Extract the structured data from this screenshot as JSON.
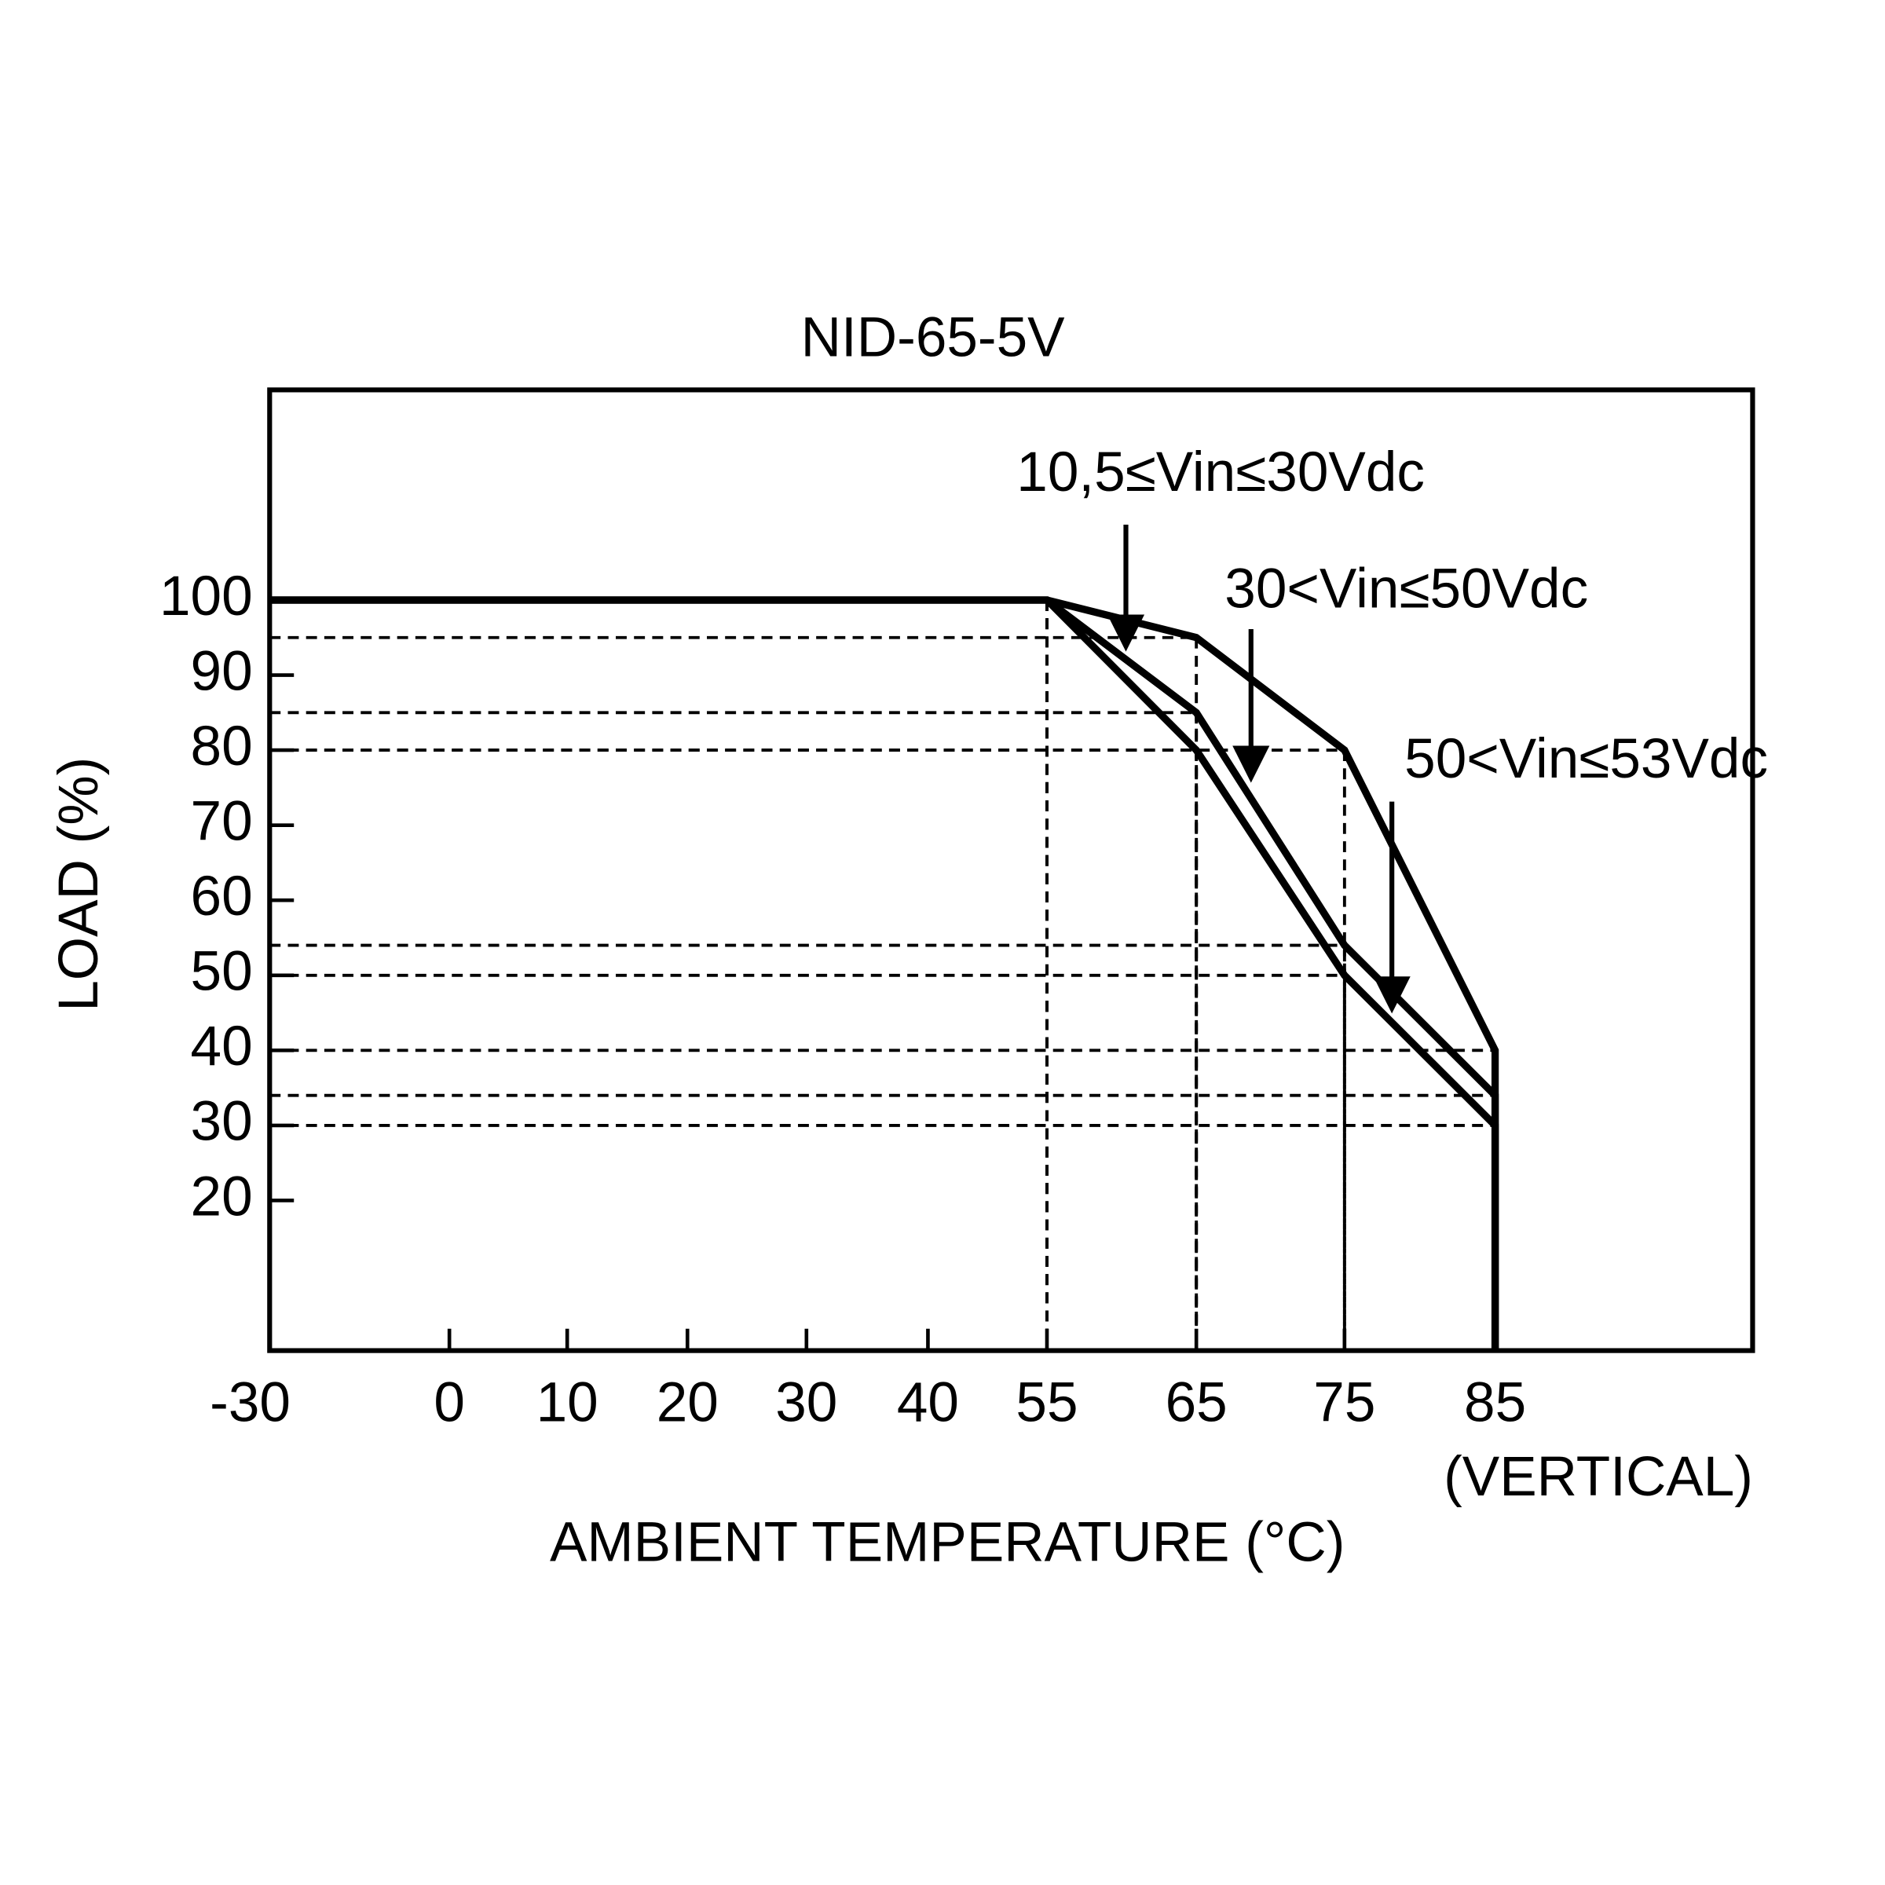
{
  "chart_data": {
    "type": "line",
    "title": "NID-65-5V",
    "x_label": "AMBIENT TEMPERATURE (°C)",
    "y_label": "LOAD (%)",
    "annotation": "(VERTICAL)",
    "xticks": [
      -30,
      0,
      10,
      20,
      30,
      40,
      55,
      65,
      75,
      85
    ],
    "ylim": [
      0,
      128
    ],
    "yticks": [
      20,
      30,
      40,
      50,
      60,
      70,
      80,
      90,
      100
    ],
    "grid": false,
    "series": [
      {
        "name": "10,5≤Vin≤30Vdc",
        "color": "#000000",
        "x": [
          -30,
          55,
          65,
          75,
          85,
          85
        ],
        "values": [
          100,
          100,
          95,
          80,
          40,
          0
        ]
      },
      {
        "name": "30<Vin≤50Vdc",
        "color": "#000000",
        "x": [
          -30,
          55,
          65,
          75,
          85,
          85
        ],
        "values": [
          100,
          100,
          85,
          54,
          34,
          0
        ]
      },
      {
        "name": "50<Vin≤53Vdc",
        "color": "#000000",
        "x": [
          -30,
          55,
          65,
          75,
          85,
          85
        ],
        "values": [
          100,
          100,
          80,
          50,
          30,
          0
        ]
      }
    ]
  }
}
